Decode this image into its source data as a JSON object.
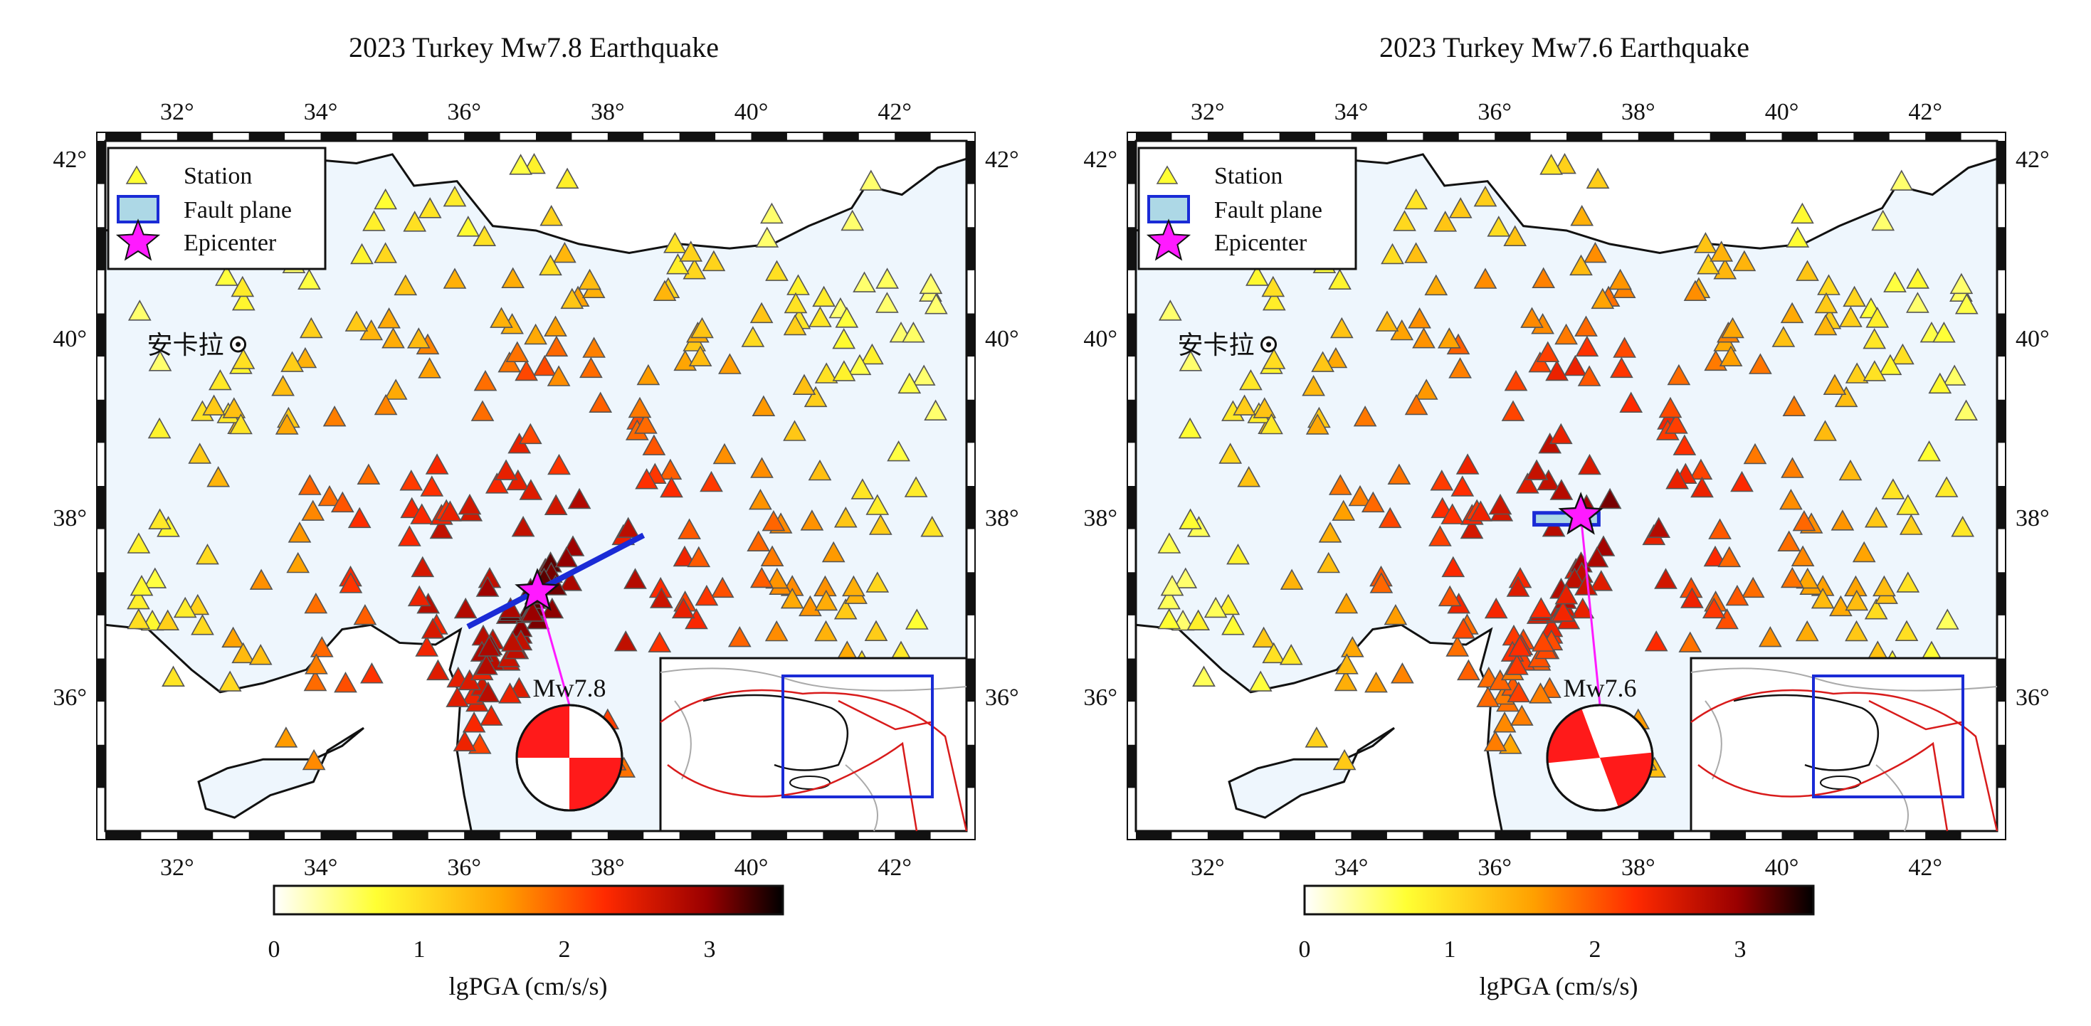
{
  "panels": [
    {
      "title": "2023 Turkey Mw7.8 Earthquake",
      "magnitude_label": "Mw7.8",
      "epicenter": {
        "lon": 37.02,
        "lat": 37.17
      },
      "fault": {
        "type": "line",
        "from": {
          "lon": 36.05,
          "lat": 36.78
        },
        "to": {
          "lon": 38.5,
          "lat": 37.8
        }
      },
      "mechanism": "strike-slip"
    },
    {
      "title": "2023 Turkey Mw7.6 Earthquake",
      "magnitude_label": "Mw7.6",
      "epicenter": {
        "lon": 37.2,
        "lat": 38.02
      },
      "fault": {
        "type": "rect",
        "from": {
          "lon": 36.55,
          "lat": 38.05
        },
        "to": {
          "lon": 37.45,
          "lat": 37.98
        }
      },
      "mechanism": "strike-slip"
    }
  ],
  "axes": {
    "lon_min": 31,
    "lon_max": 43,
    "lat_min": 34.5,
    "lat_max": 42.2,
    "lon_ticks": [
      "32°",
      "34°",
      "36°",
      "38°",
      "40°",
      "42°"
    ],
    "lat_ticks": [
      "36°",
      "38°",
      "40°",
      "42°"
    ]
  },
  "legend": {
    "station": "Station",
    "fault_plane": "Fault plane",
    "epicenter": "Epicenter"
  },
  "city": {
    "name": "安卡拉",
    "lon": 32.85,
    "lat": 39.93
  },
  "colorbar": {
    "label": "lgPGA (cm/s/s)",
    "ticks": [
      "0",
      "1",
      "2",
      "3"
    ],
    "min": 0,
    "max": 3.5,
    "colors": [
      "#ffffff",
      "#ffff00",
      "#ffa000",
      "#ff3000",
      "#c00000",
      "#000000"
    ]
  },
  "colors": {
    "land": "#eef6fd",
    "coast": "#111111",
    "fault": "#1a2bd6",
    "epicenter": "#ff1aff",
    "inset_border": "#1a2bd6",
    "plate_boundary": "#d81b1b"
  }
}
